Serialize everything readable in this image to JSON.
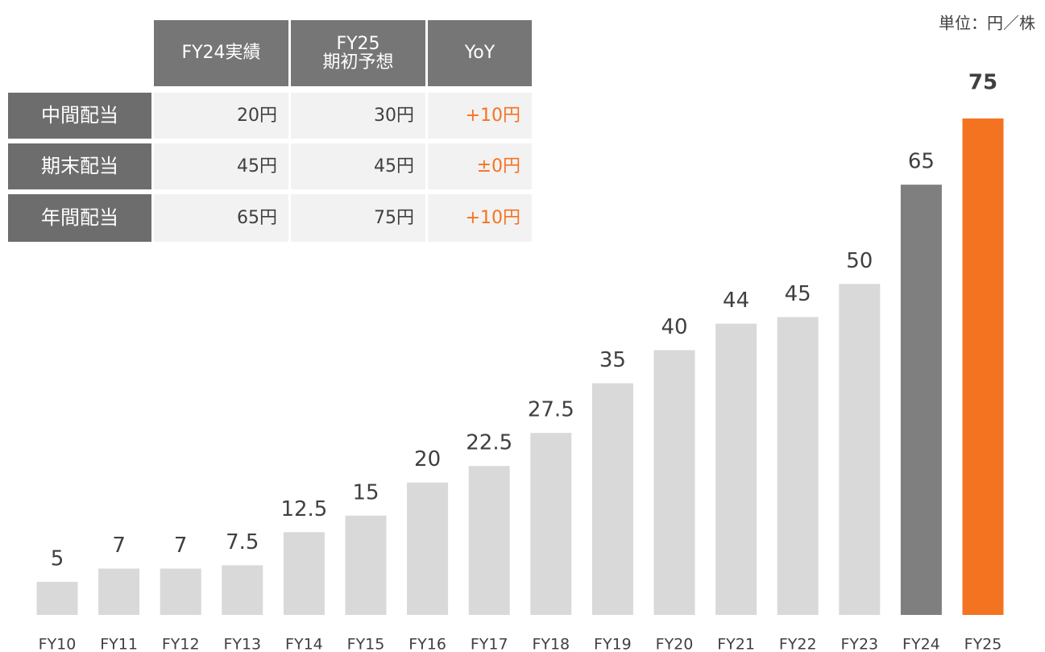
{
  "chart_data": {
    "type": "bar",
    "unit_note": "単位：円／株",
    "categories": [
      "FY10",
      "FY11",
      "FY12",
      "FY13",
      "FY14",
      "FY15",
      "FY16",
      "FY17",
      "FY18",
      "FY19",
      "FY20",
      "FY21",
      "FY22",
      "FY23",
      "FY24",
      "FY25"
    ],
    "values": [
      5,
      7,
      7,
      7.5,
      12.5,
      15,
      20,
      22.5,
      27.5,
      35,
      40,
      44,
      45,
      50,
      65,
      75
    ],
    "colors": [
      "#d9d9d9",
      "#d9d9d9",
      "#d9d9d9",
      "#d9d9d9",
      "#d9d9d9",
      "#d9d9d9",
      "#d9d9d9",
      "#d9d9d9",
      "#d9d9d9",
      "#d9d9d9",
      "#d9d9d9",
      "#d9d9d9",
      "#d9d9d9",
      "#d9d9d9",
      "#7f7f7f",
      "#f47321"
    ]
  },
  "table": {
    "header": [
      "FY24実績",
      "FY25\n期初予想",
      "YoY"
    ],
    "rows": [
      [
        "中間配当",
        "20円",
        "30円",
        "+10円"
      ],
      [
        "期末配当",
        "45円",
        "45円",
        "±0円"
      ],
      [
        "年間配当",
        "65円",
        "75円",
        "+10円"
      ]
    ]
  }
}
